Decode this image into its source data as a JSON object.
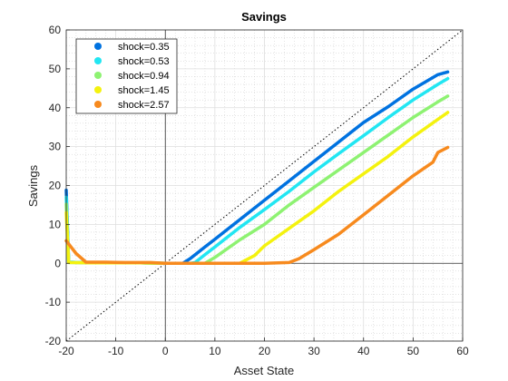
{
  "chart_data": {
    "type": "line",
    "title": "Savings",
    "xlabel": "Asset State",
    "ylabel": "Savings",
    "xlim": [
      -20,
      60
    ],
    "ylim": [
      -20,
      60
    ],
    "xticks": [
      -20,
      -10,
      0,
      10,
      20,
      30,
      40,
      50,
      60
    ],
    "yticks": [
      -20,
      -10,
      0,
      10,
      20,
      30,
      40,
      50,
      60
    ],
    "xtick_labels": [
      "-20",
      "-10",
      "0",
      "10",
      "20",
      "30",
      "40",
      "50",
      "60"
    ],
    "ytick_labels": [
      "-20",
      "-10",
      "0",
      "10",
      "20",
      "30",
      "40",
      "50",
      "60"
    ],
    "grid": true,
    "minor_grid": true,
    "legend_position": "top-left",
    "reference_line": {
      "style": "dotted",
      "points": [
        [
          -20,
          -20
        ],
        [
          60,
          60
        ]
      ]
    },
    "series": [
      {
        "name": "shock=0.35",
        "color": "#0072e0",
        "points": [
          [
            -20,
            18.8
          ],
          [
            -19.5,
            0.3
          ],
          [
            -15,
            0.1
          ],
          [
            -10,
            0.1
          ],
          [
            -5,
            0.1
          ],
          [
            0,
            0
          ],
          [
            2,
            0
          ],
          [
            3.5,
            0
          ],
          [
            5,
            1.2
          ],
          [
            8,
            4.2
          ],
          [
            10,
            6.2
          ],
          [
            15,
            11.2
          ],
          [
            20,
            16.2
          ],
          [
            25,
            21.2
          ],
          [
            30,
            26.2
          ],
          [
            35,
            31.2
          ],
          [
            40,
            36.2
          ],
          [
            45,
            40.3
          ],
          [
            50,
            44.8
          ],
          [
            55,
            48.5
          ],
          [
            57,
            49.2
          ]
        ]
      },
      {
        "name": "shock=0.53",
        "color": "#22e6f2",
        "points": [
          [
            -20,
            17.0
          ],
          [
            -19.5,
            0.3
          ],
          [
            -15,
            0.1
          ],
          [
            -10,
            0.1
          ],
          [
            -5,
            0.1
          ],
          [
            0,
            0
          ],
          [
            5,
            0
          ],
          [
            6,
            0.2
          ],
          [
            8,
            2.2
          ],
          [
            10,
            4.2
          ],
          [
            15,
            9.2
          ],
          [
            20,
            13.8
          ],
          [
            25,
            18.5
          ],
          [
            30,
            23.5
          ],
          [
            35,
            28.2
          ],
          [
            40,
            32.8
          ],
          [
            45,
            37.5
          ],
          [
            50,
            42.0
          ],
          [
            55,
            46.0
          ],
          [
            57,
            47.5
          ]
        ]
      },
      {
        "name": "shock=0.94",
        "color": "#8ef272",
        "points": [
          [
            -20,
            15.2
          ],
          [
            -19.5,
            0.2
          ],
          [
            -15,
            0.1
          ],
          [
            -10,
            0.1
          ],
          [
            -5,
            0.1
          ],
          [
            0,
            0
          ],
          [
            5,
            0
          ],
          [
            8,
            0
          ],
          [
            10,
            1.5
          ],
          [
            15,
            6.0
          ],
          [
            20,
            10.0
          ],
          [
            25,
            15.0
          ],
          [
            30,
            19.5
          ],
          [
            35,
            24.0
          ],
          [
            40,
            28.5
          ],
          [
            45,
            33.0
          ],
          [
            50,
            37.5
          ],
          [
            55,
            41.5
          ],
          [
            57,
            43.0
          ]
        ]
      },
      {
        "name": "shock=1.45",
        "color": "#f4f20e",
        "points": [
          [
            -20,
            13.0
          ],
          [
            -19.5,
            0.2
          ],
          [
            -15,
            0.1
          ],
          [
            -10,
            0.1
          ],
          [
            -5,
            0.1
          ],
          [
            0,
            0
          ],
          [
            10,
            0
          ],
          [
            15,
            0
          ],
          [
            18,
            2.0
          ],
          [
            20,
            4.5
          ],
          [
            25,
            9.0
          ],
          [
            30,
            13.5
          ],
          [
            35,
            18.5
          ],
          [
            40,
            23.0
          ],
          [
            45,
            27.5
          ],
          [
            50,
            32.5
          ],
          [
            55,
            37.0
          ],
          [
            57,
            38.8
          ]
        ]
      },
      {
        "name": "shock=2.57",
        "color": "#f78a1e",
        "points": [
          [
            -20,
            5.8
          ],
          [
            -18,
            2.5
          ],
          [
            -16,
            0.3
          ],
          [
            -12,
            0.3
          ],
          [
            -8,
            0.2
          ],
          [
            -5,
            0.2
          ],
          [
            -3,
            0.2
          ],
          [
            0,
            0
          ],
          [
            10,
            0
          ],
          [
            20,
            0
          ],
          [
            25,
            0.2
          ],
          [
            27,
            1.2
          ],
          [
            30,
            3.5
          ],
          [
            35,
            7.5
          ],
          [
            40,
            12.5
          ],
          [
            45,
            17.5
          ],
          [
            50,
            22.5
          ],
          [
            54,
            26.0
          ],
          [
            55,
            28.5
          ],
          [
            57,
            29.8
          ]
        ]
      }
    ]
  }
}
